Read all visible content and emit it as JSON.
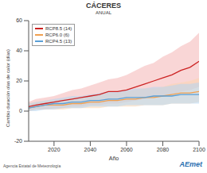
{
  "chart_data": {
    "type": "line",
    "title": "CÁCERES",
    "subtitle": "ANUAL",
    "x_label": "Año",
    "y_label": "Cambio duración olas de calor (días)",
    "footer": "Agencia Estatal de Meteorología",
    "logo": "AEmet",
    "legend": "upper left",
    "grid": false,
    "x": [
      2006,
      2010,
      2015,
      2020,
      2025,
      2030,
      2035,
      2040,
      2045,
      2050,
      2055,
      2060,
      2065,
      2070,
      2075,
      2080,
      2085,
      2090,
      2095,
      2100
    ],
    "xlim": [
      2006,
      2100
    ],
    "xticks": [
      2020,
      2040,
      2060,
      2080,
      2100
    ],
    "ylim": [
      -20,
      60
    ],
    "yticks": [
      -20,
      0,
      20,
      40,
      60
    ],
    "series": [
      {
        "name": "RCP8.5 (14)",
        "color": "#cc2222",
        "band_color": "#f4b4b4",
        "values": [
          3,
          4,
          5,
          6,
          7,
          8,
          9,
          10,
          11,
          13,
          13,
          14,
          16,
          18,
          20,
          22,
          24,
          27,
          29,
          33
        ],
        "lower": [
          0,
          1,
          1,
          2,
          2,
          3,
          3,
          4,
          4,
          5,
          5,
          6,
          7,
          8,
          9,
          10,
          11,
          13,
          14,
          16
        ],
        "upper": [
          6,
          8,
          9,
          10,
          12,
          14,
          15,
          17,
          19,
          21,
          22,
          24,
          27,
          30,
          32,
          36,
          39,
          43,
          46,
          52
        ]
      },
      {
        "name": "RCP6.0 (6)",
        "color": "#f0a050",
        "band_color": "#fbd6b0",
        "values": [
          2,
          3,
          4,
          4,
          4,
          5,
          5,
          6,
          6,
          7,
          7,
          8,
          8,
          9,
          9,
          10,
          11,
          12,
          12,
          13
        ],
        "lower": [
          0,
          1,
          1,
          1,
          1,
          2,
          2,
          2,
          2,
          3,
          3,
          3,
          3,
          4,
          4,
          4,
          5,
          5,
          5,
          6
        ],
        "upper": [
          5,
          6,
          7,
          7,
          8,
          9,
          9,
          10,
          11,
          12,
          12,
          13,
          14,
          15,
          15,
          16,
          18,
          19,
          20,
          22
        ]
      },
      {
        "name": "RCP4.5 (13)",
        "color": "#5a9fd6",
        "band_color": "#b4d6f0",
        "values": [
          2,
          3,
          4,
          5,
          5,
          6,
          6,
          7,
          7,
          8,
          8,
          9,
          9,
          9,
          10,
          10,
          10,
          11,
          11,
          11
        ],
        "lower": [
          0,
          0,
          1,
          1,
          2,
          2,
          2,
          3,
          3,
          3,
          3,
          4,
          4,
          4,
          4,
          4,
          5,
          5,
          5,
          5
        ],
        "upper": [
          5,
          6,
          7,
          8,
          9,
          10,
          10,
          11,
          12,
          13,
          13,
          14,
          15,
          15,
          16,
          16,
          17,
          18,
          18,
          19
        ]
      }
    ]
  }
}
